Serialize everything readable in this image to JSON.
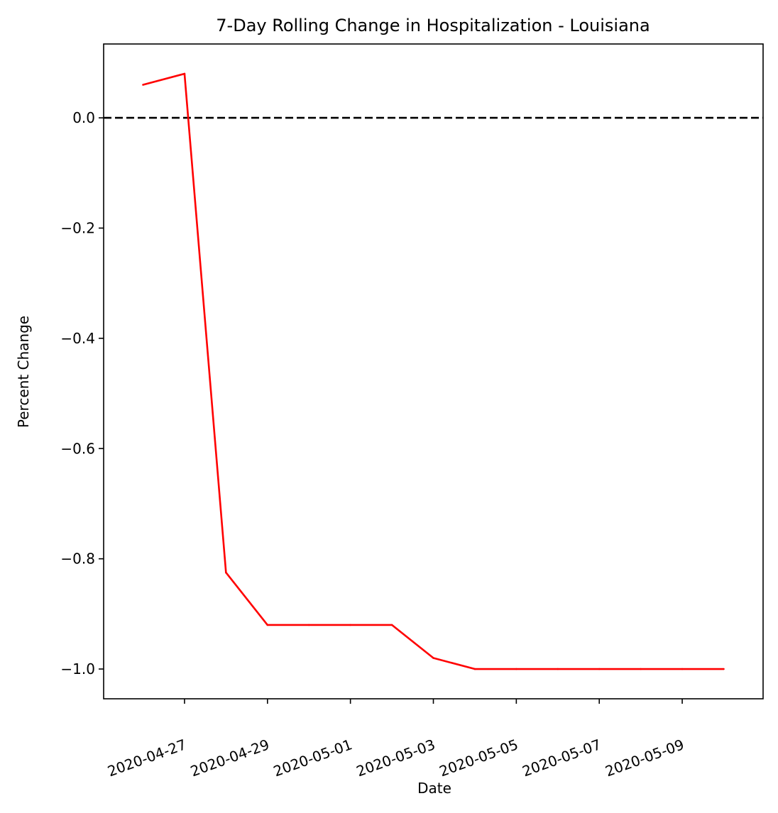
{
  "chart_data": {
    "type": "line",
    "title": "7-Day Rolling Change in Hospitalization - Louisiana",
    "xlabel": "Date",
    "ylabel": "Percent Change",
    "x": [
      "2020-04-26",
      "2020-04-27",
      "2020-04-28",
      "2020-04-29",
      "2020-04-30",
      "2020-05-01",
      "2020-05-02",
      "2020-05-03",
      "2020-05-04",
      "2020-05-05",
      "2020-05-06",
      "2020-05-07",
      "2020-05-08",
      "2020-05-09",
      "2020-05-10"
    ],
    "series": [
      {
        "color": "#ff0000",
        "values": [
          0.06,
          0.08,
          -0.825,
          -0.92,
          -0.92,
          -0.92,
          -0.92,
          -0.98,
          -1.0,
          -1.0,
          -1.0,
          -1.0,
          -1.0,
          -1.0,
          -1.0
        ]
      }
    ],
    "reference_line": {
      "y": 0.0,
      "style": "dashed",
      "color": "#000000"
    },
    "x_ticks": [
      "2020-04-27",
      "2020-04-29",
      "2020-05-01",
      "2020-05-03",
      "2020-05-05",
      "2020-05-07",
      "2020-05-09"
    ],
    "y_ticks": [
      0.0,
      -0.2,
      -0.4,
      -0.6,
      -0.8,
      -1.0
    ],
    "y_tick_labels": [
      "0.0",
      "−0.2",
      "−0.4",
      "−0.6",
      "−0.8",
      "−1.0"
    ],
    "xlim": [
      "2020-04-25.05",
      "2020-05-10.95"
    ],
    "ylim": [
      -1.054,
      0.134
    ],
    "grid": false,
    "legend": "none"
  }
}
